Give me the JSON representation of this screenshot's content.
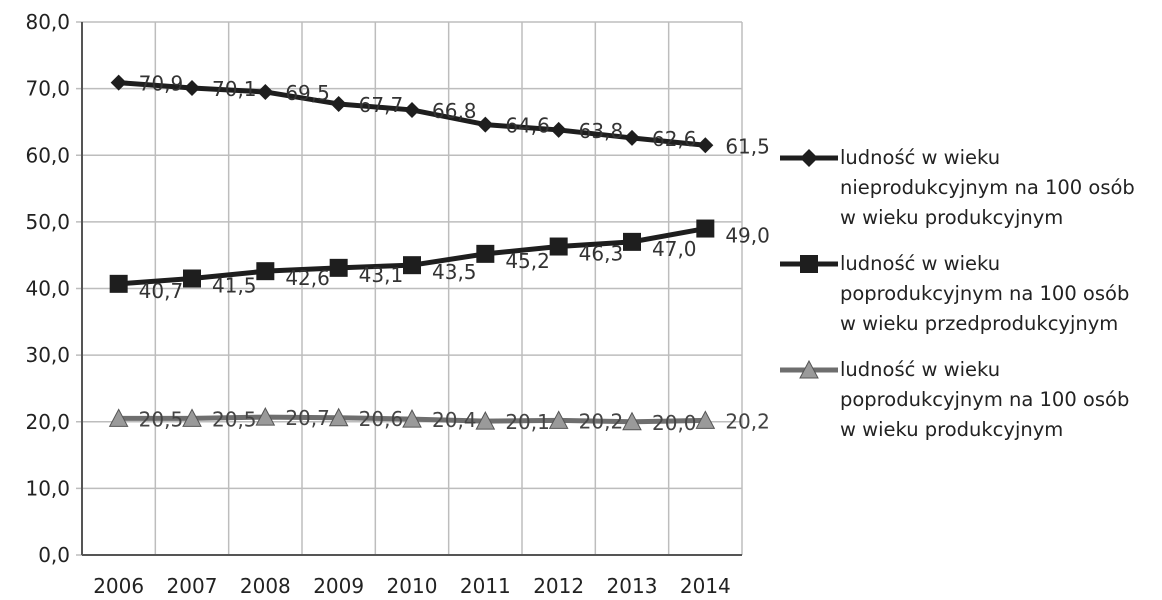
{
  "chart_data": {
    "type": "line",
    "categories": [
      "2006",
      "2007",
      "2008",
      "2009",
      "2010",
      "2011",
      "2012",
      "2013",
      "2014"
    ],
    "ylim": [
      0,
      80
    ],
    "yticks": [
      "0,0",
      "10,0",
      "20,0",
      "30,0",
      "40,0",
      "50,0",
      "60,0",
      "70,0",
      "80,0"
    ],
    "grid": "vertical and horizontal",
    "legend_position": "right",
    "series": [
      {
        "name": "ludność w wieku nieprodukcyjnym na 100 osób w wieku produkcyjnym",
        "legend_lines": [
          "ludność w wieku",
          "nieprodukcyjnym na 100 osób",
          "w wieku produkcyjnym"
        ],
        "marker": "diamond",
        "color": "#1e1e1e",
        "values": [
          70.9,
          70.1,
          69.5,
          67.7,
          66.8,
          64.6,
          63.8,
          62.6,
          61.5
        ],
        "labels": [
          "70,9",
          "70,1",
          "69,5",
          "67,7",
          "66,8",
          "64,6",
          "63,8",
          "62,6",
          "61,5"
        ]
      },
      {
        "name": "ludność w wieku poprodukcyjnym na 100 osób w wieku przedprodukcyjnym",
        "legend_lines": [
          "ludność w wieku",
          "poprodukcyjnym na 100 osób",
          "w wieku przedprodukcyjnym"
        ],
        "marker": "square",
        "color": "#1e1e1e",
        "values": [
          40.7,
          41.5,
          42.6,
          43.1,
          43.5,
          45.2,
          46.3,
          47.0,
          49.0
        ],
        "labels": [
          "40,7",
          "41,5",
          "42,6",
          "43,1",
          "43,5",
          "45,2",
          "46,3",
          "47,0",
          "49,0"
        ]
      },
      {
        "name": "ludność w wieku poprodukcyjnym na 100 osób w wieku produkcyjnym",
        "legend_lines": [
          "ludność w wieku",
          "poprodukcyjnym na 100 osób",
          "w wieku produkcyjnym"
        ],
        "marker": "triangle",
        "color": "#6e6e6e",
        "values": [
          20.5,
          20.5,
          20.7,
          20.6,
          20.4,
          20.1,
          20.2,
          20.0,
          20.2
        ],
        "labels": [
          "20,5",
          "20,5",
          "20,7",
          "20,6",
          "20,4",
          "20,1",
          "20,2",
          "20,0",
          "20,2"
        ]
      }
    ]
  }
}
